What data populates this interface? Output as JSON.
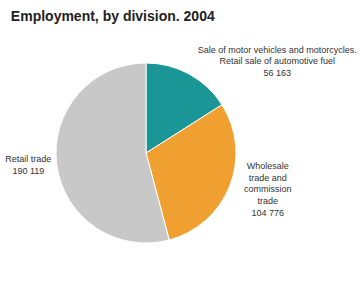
{
  "chart_data": {
    "type": "pie",
    "title": "Employment, by division. 2004",
    "categories": [
      "Sale of motor vehicles and motorcycles.\nRetail sale of automotive fuel",
      "Wholesale\ntrade and\ncommission\ntrade",
      "Retail trade"
    ],
    "values": [
      56163,
      104776,
      190119
    ],
    "value_labels": [
      "56 163",
      "104 776",
      "190 119"
    ],
    "colors": [
      "#1a9696",
      "#f0a030",
      "#c8c8c8"
    ],
    "data_labels": true
  }
}
